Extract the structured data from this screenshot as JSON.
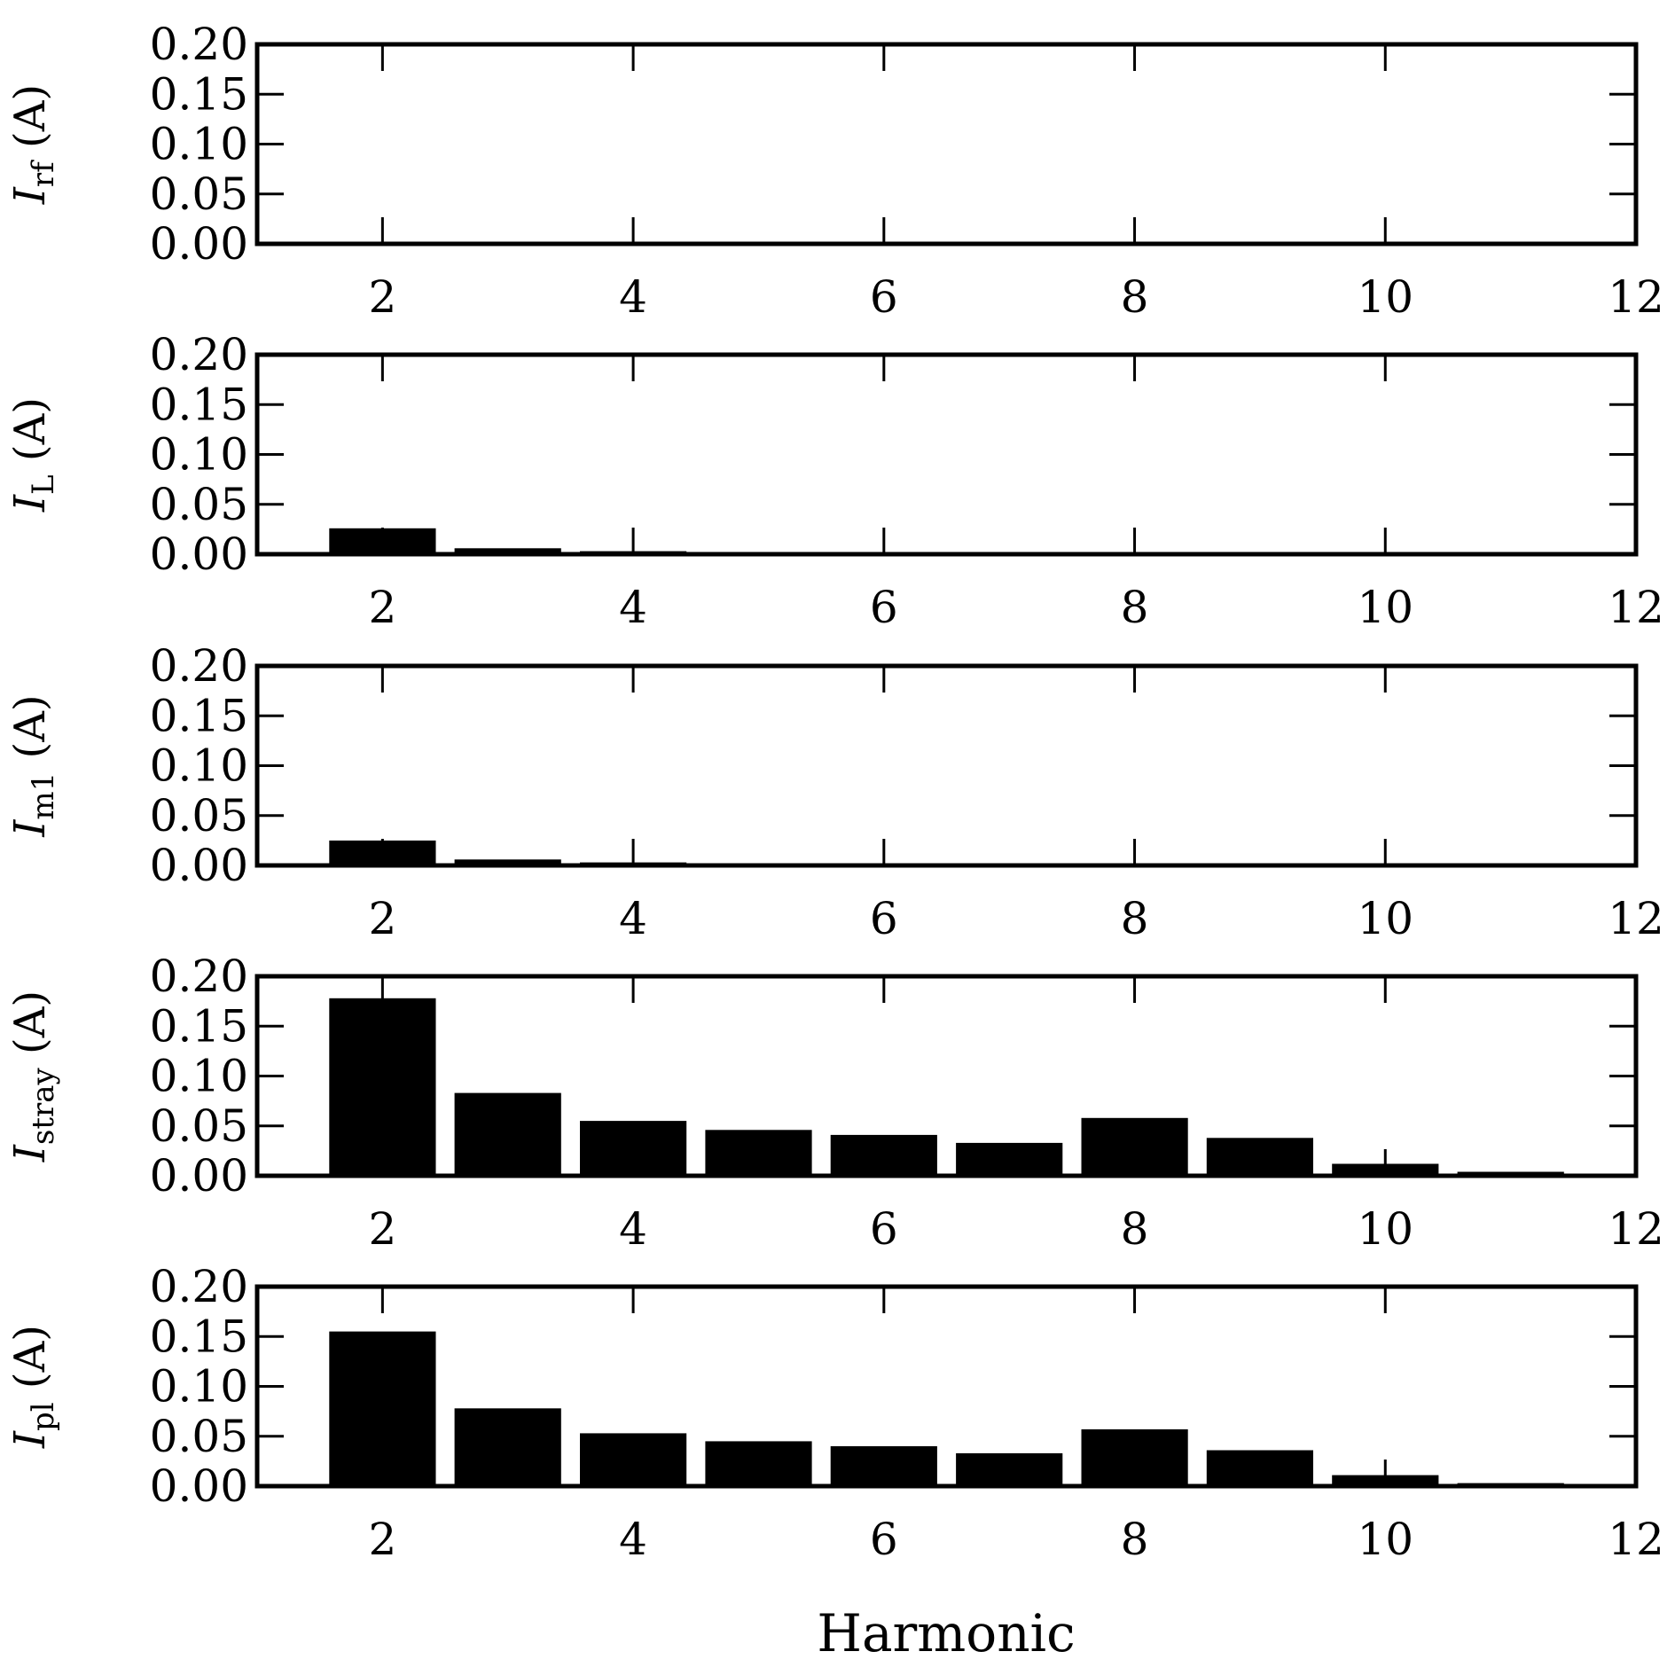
{
  "chart_data": {
    "type": "bar",
    "xlabel": "Harmonic",
    "xlim": [
      1,
      12
    ],
    "ylim": [
      0,
      0.2
    ],
    "xticks": [
      "2",
      "4",
      "6",
      "8",
      "10",
      "12"
    ],
    "yticks": [
      "0.00",
      "0.05",
      "0.10",
      "0.15",
      "0.20"
    ],
    "bar_color": "#000000",
    "grid": false,
    "categories": [
      2,
      3,
      4,
      5,
      6,
      7,
      8,
      9,
      10,
      11
    ],
    "panels": [
      {
        "ylabel": {
          "symbol": "I",
          "sub": "rf",
          "unit": " (A)"
        },
        "values": [
          0.002,
          0.0005,
          0.0003,
          0.0002,
          0.0002,
          0.0002,
          0.0002,
          0.0002,
          0.0001,
          0.0001
        ]
      },
      {
        "ylabel": {
          "symbol": "I",
          "sub": "L",
          "unit": " (A)"
        },
        "values": [
          0.026,
          0.006,
          0.003,
          0.001,
          0.001,
          0.0008,
          0.0008,
          0.0006,
          0.0003,
          0.0002
        ]
      },
      {
        "ylabel": {
          "symbol": "I",
          "sub": "m1",
          "unit": " (A)"
        },
        "values": [
          0.025,
          0.006,
          0.003,
          0.002,
          0.002,
          0.0015,
          0.002,
          0.001,
          0.0005,
          0.0003
        ]
      },
      {
        "ylabel": {
          "symbol": "I",
          "sub": "stray",
          "unit": " (A)"
        },
        "values": [
          0.178,
          0.083,
          0.055,
          0.046,
          0.041,
          0.033,
          0.058,
          0.038,
          0.012,
          0.004
        ]
      },
      {
        "ylabel": {
          "symbol": "I",
          "sub": "pl",
          "unit": " (A)"
        },
        "values": [
          0.155,
          0.078,
          0.053,
          0.045,
          0.04,
          0.033,
          0.057,
          0.036,
          0.011,
          0.003
        ]
      }
    ]
  }
}
